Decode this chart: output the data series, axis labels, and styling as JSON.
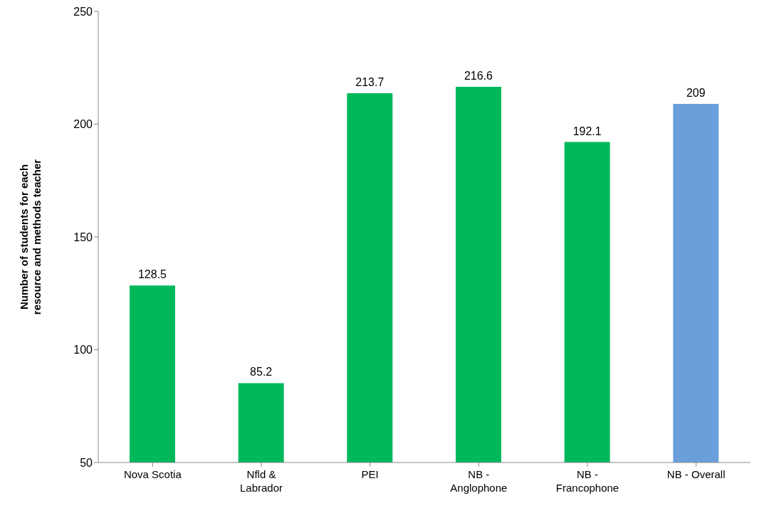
{
  "chart_data": {
    "type": "bar",
    "ylabel": "Number of students for each resource and methods teacher",
    "categories": [
      "Nova Scotia",
      "Nfld & Labrador",
      "PEI",
      "NB - Anglophone",
      "NB - Francophone",
      "NB - Overall"
    ],
    "values": [
      128.5,
      85.2,
      213.7,
      216.6,
      192.1,
      209
    ],
    "colors": [
      "#00b85c",
      "#00b85c",
      "#00b85c",
      "#00b85c",
      "#00b85c",
      "#6a9fdc"
    ],
    "ylim": [
      50,
      250
    ],
    "yticks": [
      50,
      100,
      150,
      200,
      250
    ],
    "data_labels": true
  }
}
